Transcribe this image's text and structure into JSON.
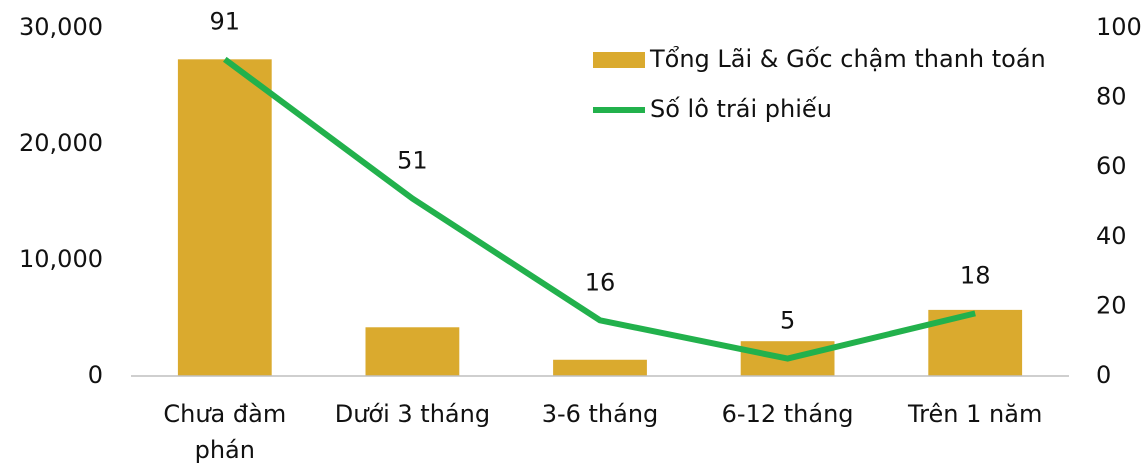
{
  "chart_data": {
    "type": "bar",
    "categories": [
      "Chưa đàm phán",
      "Dưới 3 tháng",
      "3-6 tháng",
      "6-12 tháng",
      "Trên 1 năm"
    ],
    "series": [
      {
        "name": "Tổng Lãi & Gốc chậm thanh toán",
        "type": "bar",
        "color": "#DAAA2E",
        "values": [
          27300,
          4200,
          1400,
          3000,
          5700
        ]
      },
      {
        "name": "Số lô trái phiếu",
        "type": "line",
        "axis": "y2",
        "color": "#22B14C",
        "values": [
          91,
          51,
          16,
          5,
          18
        ],
        "show_value_labels": true
      }
    ],
    "ylim": [
      0,
      30000
    ],
    "yticks": [
      0,
      {
        "value": 10000,
        "label": "10,000"
      },
      {
        "value": 20000,
        "label": "20,000"
      },
      {
        "value": 30000,
        "label": "30,000"
      }
    ],
    "y2lim": [
      0,
      100
    ],
    "y2ticks": [
      0,
      20,
      40,
      60,
      80,
      100
    ],
    "grid": false,
    "legend": "upper right"
  }
}
